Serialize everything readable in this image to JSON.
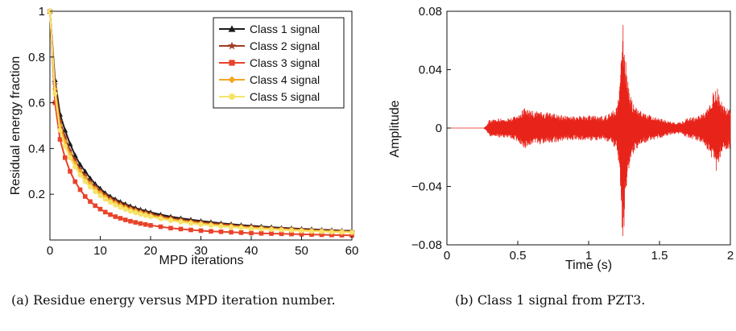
{
  "chart_data": [
    {
      "type": "line",
      "title": "",
      "xlabel": "MPD iterations",
      "ylabel": "Residual energy fraction",
      "xlim": [
        0,
        60
      ],
      "ylim": [
        0,
        1
      ],
      "x_ticks": [
        "0",
        "10",
        "20",
        "30",
        "40",
        "50",
        "60"
      ],
      "y_ticks": [
        "0.2",
        "0.4",
        "0.6",
        "0.8",
        "1"
      ],
      "legend_position": "top-right",
      "x": [
        0,
        1,
        2,
        3,
        4,
        5,
        6,
        7,
        8,
        9,
        10,
        11,
        12,
        13,
        14,
        15,
        16,
        17,
        18,
        19,
        20,
        22,
        24,
        26,
        28,
        30,
        32,
        34,
        36,
        38,
        40,
        42,
        44,
        46,
        48,
        50,
        52,
        54,
        56,
        58,
        60
      ],
      "series": [
        {
          "name": "Class 1 signal",
          "color": "#1a1a1a",
          "marker": "triangle",
          "values": [
            1.0,
            0.7,
            0.55,
            0.48,
            0.42,
            0.37,
            0.33,
            0.3,
            0.27,
            0.245,
            0.225,
            0.205,
            0.19,
            0.178,
            0.167,
            0.157,
            0.148,
            0.14,
            0.133,
            0.127,
            0.121,
            0.111,
            0.102,
            0.095,
            0.089,
            0.083,
            0.078,
            0.073,
            0.069,
            0.065,
            0.062,
            0.059,
            0.056,
            0.053,
            0.051,
            0.049,
            0.047,
            0.045,
            0.043,
            0.041,
            0.04
          ]
        },
        {
          "name": "Class 2 signal",
          "color": "#a23a22",
          "marker": "star",
          "values": [
            1.0,
            0.68,
            0.52,
            0.45,
            0.39,
            0.35,
            0.31,
            0.28,
            0.255,
            0.233,
            0.214,
            0.196,
            0.182,
            0.17,
            0.159,
            0.149,
            0.141,
            0.133,
            0.126,
            0.12,
            0.114,
            0.104,
            0.096,
            0.089,
            0.083,
            0.078,
            0.073,
            0.069,
            0.065,
            0.061,
            0.058,
            0.055,
            0.052,
            0.05,
            0.048,
            0.046,
            0.044,
            0.042,
            0.04,
            0.039,
            0.037
          ]
        },
        {
          "name": "Class 3 signal",
          "color": "#e8432a",
          "marker": "square",
          "values": [
            1.0,
            0.6,
            0.44,
            0.36,
            0.3,
            0.255,
            0.22,
            0.19,
            0.168,
            0.15,
            0.135,
            0.122,
            0.111,
            0.102,
            0.095,
            0.088,
            0.082,
            0.077,
            0.072,
            0.068,
            0.064,
            0.058,
            0.052,
            0.048,
            0.044,
            0.041,
            0.038,
            0.036,
            0.034,
            0.032,
            0.03,
            0.029,
            0.028,
            0.027,
            0.026,
            0.025,
            0.024,
            0.023,
            0.022,
            0.021,
            0.02
          ]
        },
        {
          "name": "Class 4 signal",
          "color": "#f5a623",
          "marker": "diamond",
          "values": [
            1.0,
            0.66,
            0.5,
            0.43,
            0.375,
            0.335,
            0.3,
            0.27,
            0.245,
            0.224,
            0.205,
            0.188,
            0.174,
            0.162,
            0.151,
            0.142,
            0.134,
            0.127,
            0.12,
            0.114,
            0.108,
            0.099,
            0.091,
            0.084,
            0.078,
            0.073,
            0.068,
            0.064,
            0.061,
            0.057,
            0.054,
            0.052,
            0.049,
            0.047,
            0.045,
            0.043,
            0.041,
            0.04,
            0.038,
            0.037,
            0.035
          ]
        },
        {
          "name": "Class 5 signal",
          "color": "#f7e36a",
          "marker": "circle",
          "values": [
            1.0,
            0.64,
            0.48,
            0.41,
            0.36,
            0.32,
            0.285,
            0.256,
            0.232,
            0.212,
            0.194,
            0.178,
            0.165,
            0.153,
            0.143,
            0.134,
            0.126,
            0.119,
            0.113,
            0.107,
            0.102,
            0.093,
            0.085,
            0.079,
            0.073,
            0.068,
            0.064,
            0.06,
            0.056,
            0.053,
            0.05,
            0.048,
            0.046,
            0.044,
            0.042,
            0.04,
            0.038,
            0.037,
            0.035,
            0.034,
            0.033
          ]
        }
      ]
    },
    {
      "type": "line",
      "title": "",
      "xlabel": "Time (s)",
      "ylabel": "Amplitude",
      "xlim": [
        0,
        2
      ],
      "ylim": [
        -0.08,
        0.08
      ],
      "x_ticks": [
        "0",
        "0.5",
        "1",
        "1.5",
        "2"
      ],
      "y_ticks": [
        "0.08",
        "0.04",
        "0",
        "−0.04",
        "−0.08"
      ],
      "series": [
        {
          "color": "#e8231a",
          "envelope_time_s": [
            0,
            0.26,
            0.28,
            0.3,
            0.45,
            0.5,
            0.55,
            0.6,
            0.7,
            0.8,
            0.9,
            1.0,
            1.1,
            1.15,
            1.2,
            1.22,
            1.23,
            1.24,
            1.25,
            1.26,
            1.28,
            1.3,
            1.35,
            1.4,
            1.5,
            1.6,
            1.65,
            1.7,
            1.75,
            1.8,
            1.85,
            1.88,
            1.9,
            1.93,
            1.96,
            2.0
          ],
          "envelope_amplitude": [
            0,
            0,
            0.002,
            0.006,
            0.007,
            0.01,
            0.014,
            0.012,
            0.011,
            0.009,
            0.008,
            0.009,
            0.008,
            0.01,
            0.015,
            0.03,
            0.06,
            0.075,
            0.07,
            0.05,
            0.03,
            0.02,
            0.013,
            0.01,
            0.007,
            0.004,
            0.004,
            0.007,
            0.008,
            0.01,
            0.016,
            0.025,
            0.03,
            0.02,
            0.015,
            0.014
          ]
        }
      ]
    }
  ],
  "captions": {
    "a": "(a) Residue energy versus MPD iteration number.",
    "b": "(b) Class 1 signal from PZT3."
  }
}
